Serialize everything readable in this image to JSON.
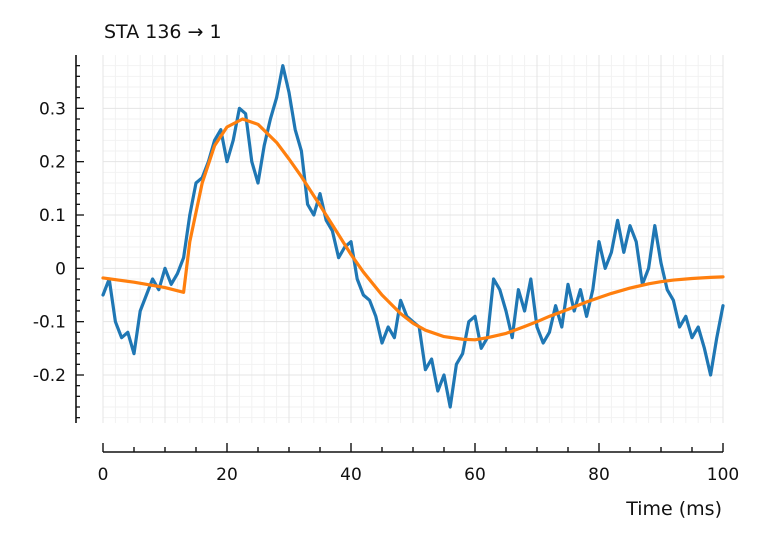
{
  "chart_data": {
    "type": "line",
    "title": "STA 136 → 1",
    "xlabel": "Time (ms)",
    "ylabel": "",
    "xlim": [
      0,
      100
    ],
    "ylim": [
      -0.29,
      0.4
    ],
    "grid": true,
    "legend": "none",
    "x_ticks": [
      0,
      20,
      40,
      60,
      80,
      100
    ],
    "y_ticks": [
      -0.2,
      -0.1,
      0,
      0.1,
      0.2,
      0.3
    ],
    "y_tick_labels": [
      "-0.2",
      "-0.1",
      "0",
      "0.1",
      "0.2",
      "0.3"
    ],
    "x_tick_labels": [
      "0",
      "20",
      "40",
      "60",
      "80",
      "100"
    ],
    "series": [
      {
        "color": "#1f77b4",
        "x": [
          0,
          1,
          2,
          3,
          4,
          5,
          6,
          7,
          8,
          9,
          10,
          11,
          12,
          13,
          14,
          15,
          16,
          17,
          18,
          19,
          20,
          21,
          22,
          23,
          24,
          25,
          26,
          27,
          28,
          29,
          30,
          31,
          32,
          33,
          34,
          35,
          36,
          37,
          38,
          39,
          40,
          41,
          42,
          43,
          44,
          45,
          46,
          47,
          48,
          49,
          50,
          51,
          52,
          53,
          54,
          55,
          56,
          57,
          58,
          59,
          60,
          61,
          62,
          63,
          64,
          65,
          66,
          67,
          68,
          69,
          70,
          71,
          72,
          73,
          74,
          75,
          76,
          77,
          78,
          79,
          80,
          81,
          82,
          83,
          84,
          85,
          86,
          87,
          88,
          89,
          90,
          91,
          92,
          93,
          94,
          95,
          96,
          97,
          98,
          99,
          100
        ],
        "y": [
          -0.05,
          -0.02,
          -0.1,
          -0.13,
          -0.12,
          -0.16,
          -0.08,
          -0.05,
          -0.02,
          -0.04,
          0.0,
          -0.03,
          -0.01,
          0.02,
          0.1,
          0.16,
          0.17,
          0.2,
          0.24,
          0.26,
          0.2,
          0.24,
          0.3,
          0.29,
          0.2,
          0.16,
          0.23,
          0.28,
          0.32,
          0.38,
          0.33,
          0.26,
          0.22,
          0.12,
          0.1,
          0.14,
          0.09,
          0.07,
          0.02,
          0.04,
          0.05,
          -0.02,
          -0.05,
          -0.06,
          -0.09,
          -0.14,
          -0.11,
          -0.13,
          -0.06,
          -0.09,
          -0.1,
          -0.11,
          -0.19,
          -0.17,
          -0.23,
          -0.2,
          -0.26,
          -0.18,
          -0.16,
          -0.1,
          -0.09,
          -0.15,
          -0.13,
          -0.02,
          -0.04,
          -0.08,
          -0.13,
          -0.04,
          -0.08,
          -0.02,
          -0.11,
          -0.14,
          -0.12,
          -0.07,
          -0.11,
          -0.03,
          -0.08,
          -0.04,
          -0.09,
          -0.04,
          0.05,
          0.0,
          0.03,
          0.09,
          0.03,
          0.08,
          0.05,
          -0.03,
          0.0,
          0.08,
          0.01,
          -0.04,
          -0.06,
          -0.11,
          -0.09,
          -0.13,
          -0.11,
          -0.15,
          -0.2,
          -0.13,
          -0.07
        ]
      },
      {
        "color": "#ff7f0e",
        "x": [
          0,
          5,
          10,
          13,
          14,
          16,
          18,
          20,
          22.5,
          25,
          28,
          30,
          32,
          35,
          38,
          40,
          42,
          45,
          48,
          50,
          52,
          55,
          58,
          60,
          62,
          65,
          68,
          70,
          72,
          75,
          78,
          80,
          82,
          85,
          88,
          90,
          92,
          95,
          98,
          100
        ],
        "y": [
          -0.018,
          -0.026,
          -0.036,
          -0.045,
          0.05,
          0.16,
          0.23,
          0.265,
          0.28,
          0.27,
          0.236,
          0.205,
          0.172,
          0.118,
          0.063,
          0.026,
          -0.007,
          -0.05,
          -0.085,
          -0.103,
          -0.116,
          -0.128,
          -0.133,
          -0.134,
          -0.13,
          -0.122,
          -0.109,
          -0.1,
          -0.09,
          -0.077,
          -0.063,
          -0.055,
          -0.047,
          -0.037,
          -0.029,
          -0.025,
          -0.022,
          -0.019,
          -0.017,
          -0.016
        ]
      }
    ]
  }
}
